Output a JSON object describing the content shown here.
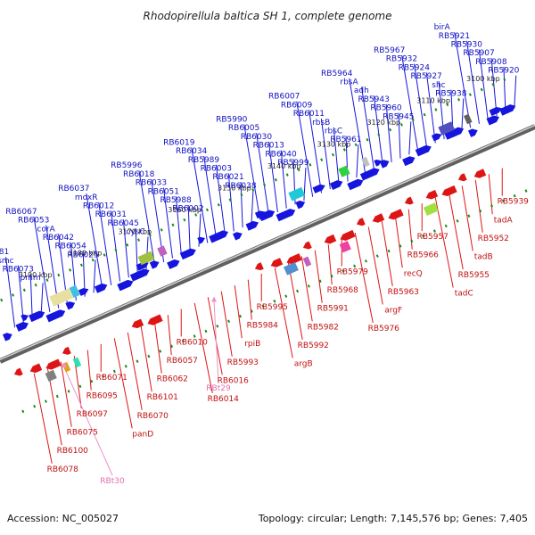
{
  "title": "Rhodopirellula baltica SH 1, complete genome",
  "footer": {
    "accession": "Accession: NC_005027",
    "summary": "Topology: circular; Length: 7,145,576 bp; Genes: 7,405"
  },
  "colors": {
    "forward": "#1515dd",
    "reverse": "#dd1515",
    "rna": "#f090c8",
    "backbone": "#808080",
    "ticks": "#1a8a1a"
  },
  "kbp_marks": [
    "3100 kbp",
    "3110 kbp",
    "3120 kbp",
    "3130 kbp",
    "3140 kbp",
    "3150 kbp",
    "3160 kbp",
    "3170 kbp",
    "3180 kbp",
    "3190 kbp"
  ],
  "forward_labels": [
    "RB5920",
    "RB5908",
    "RB5907",
    "RB5930",
    "RB5921",
    "birA",
    "RB5938",
    "shc",
    "RB5927",
    "RB5924",
    "RB5932",
    "RB5967",
    "RB5945",
    "RB5960",
    "RB5943",
    "adh",
    "rbsA",
    "RB5964",
    "RB5961",
    "rbsC",
    "rbsB",
    "RB6011",
    "RB6009",
    "RB6007",
    "RB5999",
    "RB6040",
    "RB6013",
    "RB6030",
    "RB6005",
    "RB5990",
    "RB6038",
    "RB6021",
    "RB6003",
    "RB5989",
    "RB6034",
    "RB6019",
    "RB6002",
    "RB5988",
    "RB6051",
    "RB6033",
    "RB6018",
    "RB5996",
    "cysC",
    "RB6045",
    "RB6031",
    "RB6012",
    "moxR",
    "RB6037",
    "RB6025",
    "RB6054",
    "RB6042",
    "corA",
    "RB6053",
    "RB6067",
    "pmm",
    "RB6073",
    "smc",
    "RB6081"
  ],
  "reverse_labels": [
    "RB5939",
    "tadA",
    "RB5952",
    "tadB",
    "RB5955",
    "tadC",
    "RB5957",
    "RB5966",
    "recQ",
    "RB5963",
    "argF",
    "RB5976",
    "RB5979",
    "RB5968",
    "RB5991",
    "RB5982",
    "RB5992",
    "argB",
    "RB5995",
    "RB5984",
    "rpiB",
    "RB5993",
    "RB6016",
    "RB6014",
    "RB6010",
    "RB6057",
    "RB6062",
    "RB6101",
    "RB6070",
    "panD",
    "RB6071",
    "RB6095",
    "RB6097",
    "RB6075",
    "RB6100",
    "RB6078"
  ],
  "rna_labels": [
    "RBt29",
    "RBt30"
  ]
}
